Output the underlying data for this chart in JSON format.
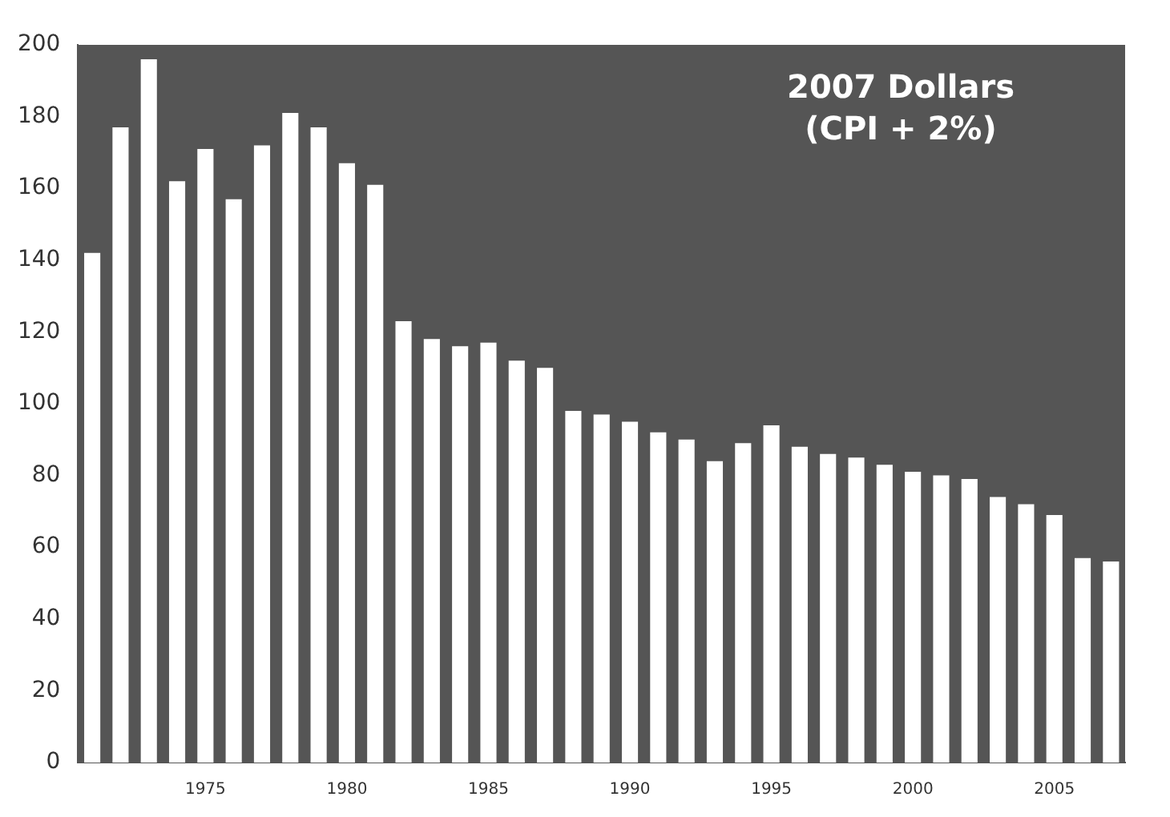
{
  "chart_data": {
    "type": "bar",
    "categories": [
      null,
      null,
      null,
      null,
      "1975",
      null,
      null,
      null,
      null,
      "1980",
      null,
      null,
      null,
      null,
      "1985",
      null,
      null,
      null,
      null,
      "1990",
      null,
      null,
      null,
      null,
      "1995",
      null,
      null,
      null,
      null,
      "2000",
      null,
      null,
      null,
      null,
      "2005",
      null,
      null
    ],
    "values": [
      142,
      177,
      196,
      162,
      171,
      157,
      172,
      181,
      177,
      167,
      161,
      123,
      118,
      116,
      117,
      112,
      110,
      98,
      97,
      95,
      92,
      90,
      84,
      89,
      94,
      88,
      86,
      85,
      83,
      81,
      80,
      79,
      74,
      72,
      69,
      57,
      56
    ],
    "color": "#ffffff",
    "ylim": [
      0,
      200
    ],
    "yticks": [
      0,
      20,
      40,
      60,
      80,
      100,
      120,
      140,
      160,
      180,
      200
    ],
    "grid": false,
    "legend": false,
    "annotations": [
      "2007 Dollars\n(CPI + 2%)"
    ]
  }
}
